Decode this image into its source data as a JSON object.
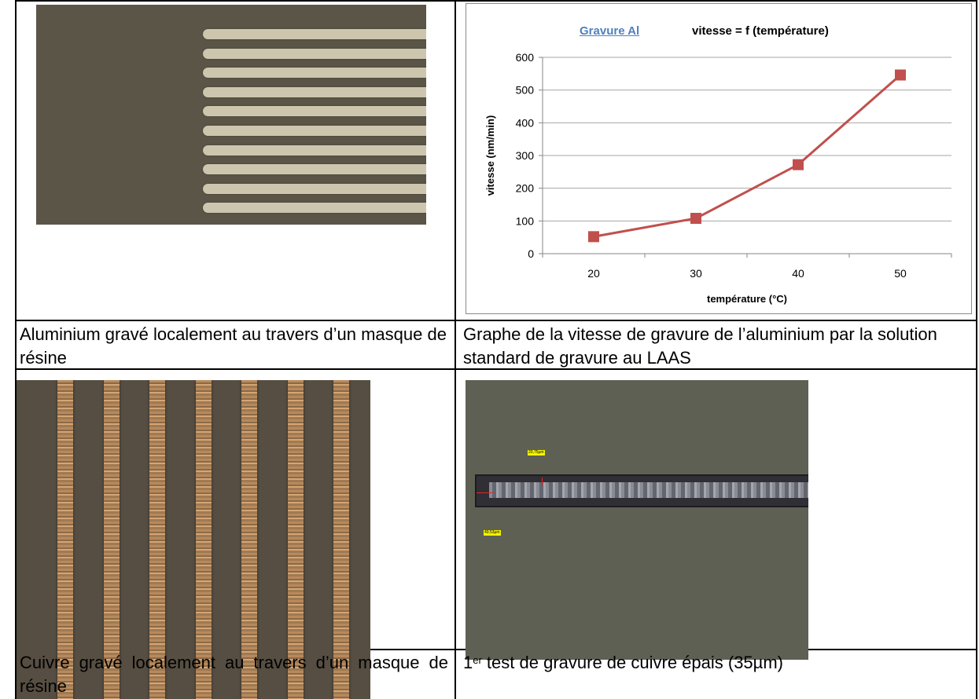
{
  "captions": {
    "aluminium": "Aluminium gravé localement au travers d’un masque de résine",
    "graph": "Graphe de la vitesse de gravure de l’aluminium par la solution standard de gravure au LAAS",
    "cuivre": "Cuivre gravé localement au travers d’un masque de résine",
    "cuivre_epais_prefix": "1",
    "cuivre_epais_sup": "er",
    "cuivre_epais_rest": " test de gravure de cuivre épais (35µm)"
  },
  "images": {
    "aluminium_lines": 10,
    "cuivre_strips": 7,
    "measure_1": "20,75µm",
    "measure_2": "49,53µm"
  },
  "chart_data": {
    "type": "line",
    "title_link": "Gravure Al",
    "title": "vitesse = f (température)",
    "xlabel": "température (°C)",
    "ylabel": "vitesse (nm/min)",
    "categories": [
      "20",
      "30",
      "40",
      "50"
    ],
    "series": [
      {
        "values": [
          52,
          108,
          272,
          546
        ],
        "color": "#c0504d"
      }
    ],
    "ylim": [
      0,
      600
    ],
    "yticks": [
      0,
      100,
      200,
      300,
      400,
      500,
      600
    ],
    "grid": true,
    "legend": "none"
  }
}
